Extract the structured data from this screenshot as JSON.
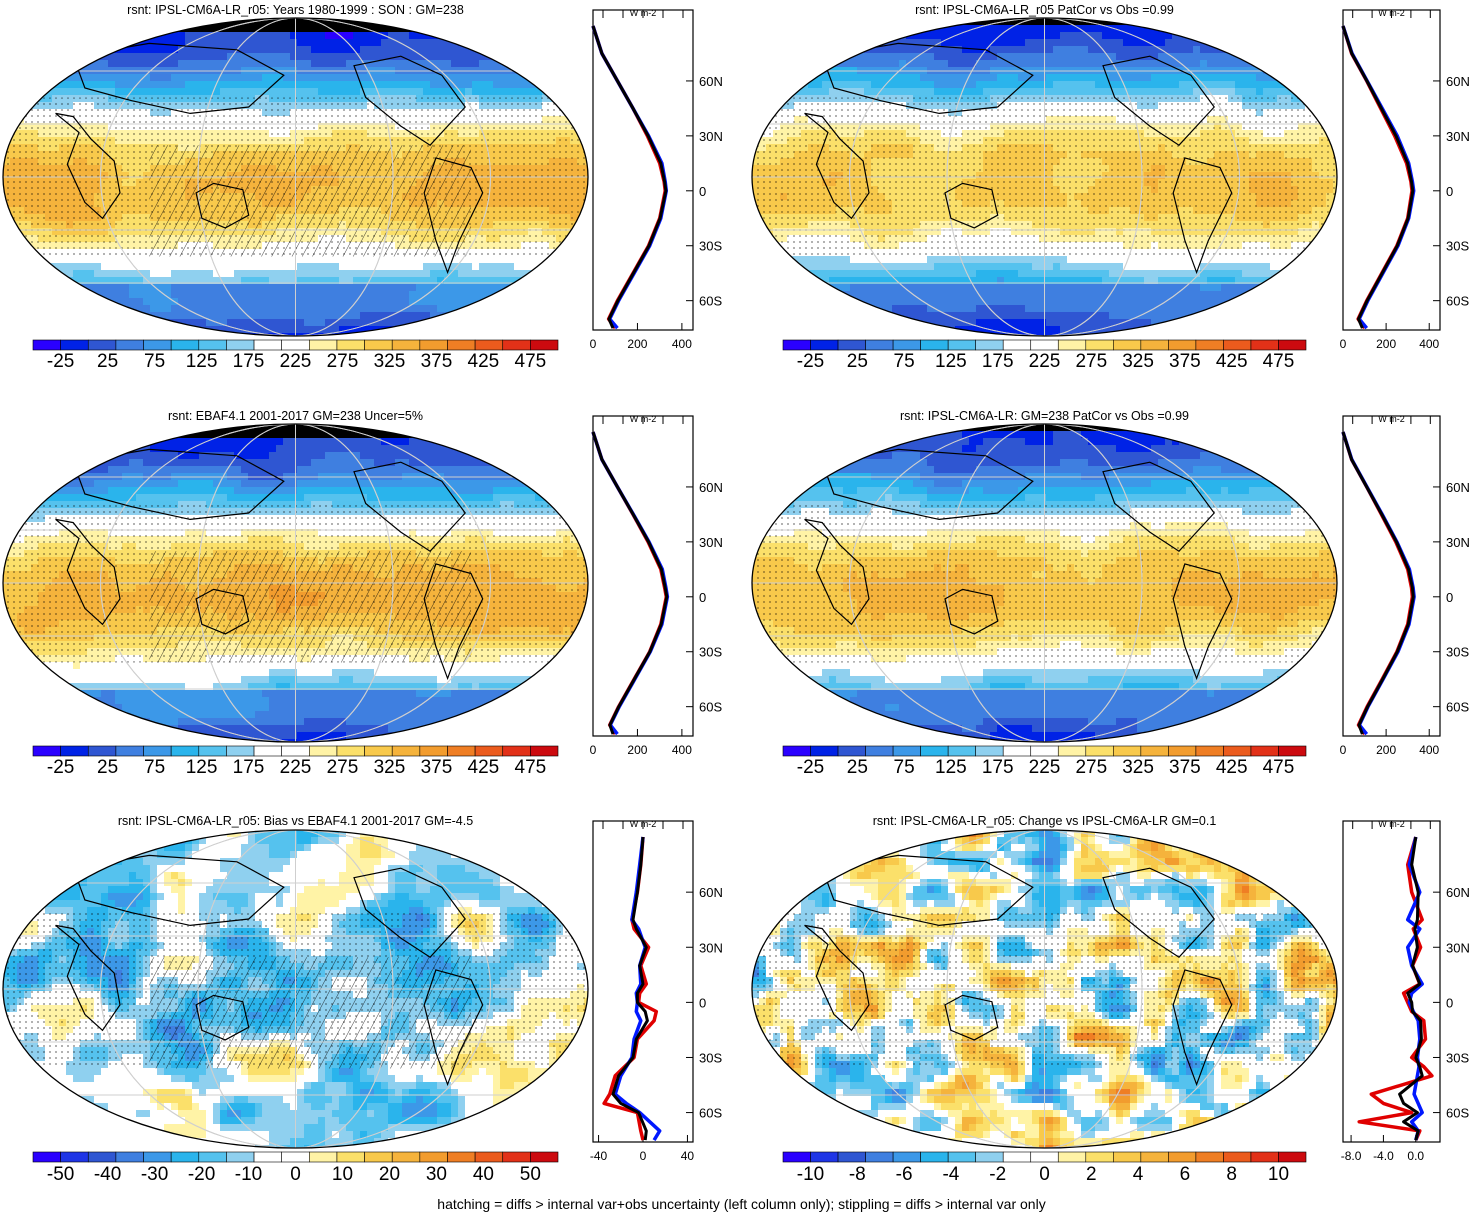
{
  "colors": {
    "abs_scale": [
      "#2a00ff",
      "#0022e6",
      "#2f56d2",
      "#3f7fe0",
      "#3c98e8",
      "#2ab4ec",
      "#55c2ee",
      "#8fd0ef",
      "#ffffff",
      "#ffffff",
      "#fff3a6",
      "#fbe06a",
      "#f8c94b",
      "#f5b33c",
      "#f29c2e",
      "#ef7e24",
      "#eb5b1d",
      "#e23118",
      "#cc0a0f"
    ],
    "anom_scale": [
      "#2a00ff",
      "#1f35e6",
      "#2f56d2",
      "#3f7fe0",
      "#3c98e8",
      "#2ab4ec",
      "#55c2ee",
      "#8fd0ef",
      "#ffffff",
      "#ffffff",
      "#fff3a6",
      "#fbe06a",
      "#f8c94b",
      "#f5b33c",
      "#f29c2e",
      "#ef7e24",
      "#eb5b1d",
      "#e23118",
      "#cc0a0f"
    ],
    "line_model": "#e00000",
    "line_obs": "#0018ff",
    "line_mean": "#000000"
  },
  "footer_note": "hatching = diffs > internal var+obs uncertainty (left column only); stippling = diffs > internal var only",
  "chart_data": [
    {
      "type": "heatmap",
      "panel": "top-left",
      "title": "rsnt: IPSL-CM6A-LR_r05: Years 1980-1999 : SON : GM=238",
      "colorbar_labels": [
        "-25",
        "25",
        "75",
        "125",
        "175",
        "225",
        "275",
        "325",
        "375",
        "425",
        "475"
      ],
      "field": {
        "kind": "abs",
        "lat_max": 330,
        "cap_low": 20,
        "eq_shift": -6
      },
      "profile": {
        "unit": "W m-2",
        "x_ticks": [
          "0",
          "200",
          "400"
        ],
        "xlim": [
          0,
          450
        ],
        "lat_ticks": [
          "60N",
          "30N",
          "0",
          "30S",
          "60S"
        ],
        "lat": [
          90,
          75,
          60,
          45,
          30,
          15,
          5,
          0,
          -15,
          -30,
          -45,
          -60,
          -70,
          -75
        ],
        "model": [
          0,
          40,
          110,
          180,
          245,
          300,
          320,
          325,
          300,
          250,
          180,
          110,
          70,
          100
        ],
        "obs": [
          0,
          40,
          110,
          180,
          250,
          310,
          325,
          330,
          305,
          255,
          185,
          115,
          75,
          110
        ],
        "mean": [
          0,
          40,
          110,
          180,
          248,
          305,
          322,
          328,
          302,
          252,
          182,
          112,
          72,
          90
        ]
      }
    },
    {
      "type": "heatmap",
      "panel": "top-right",
      "title": "rsnt: IPSL-CM6A-LR_r05 PatCor vs Obs =0.99",
      "colorbar_labels": [
        "-25",
        "25",
        "75",
        "125",
        "175",
        "225",
        "275",
        "325",
        "375",
        "425",
        "475"
      ],
      "field": {
        "kind": "abs",
        "lat_max": 320,
        "cap_low": 25,
        "eq_shift": -4
      },
      "profile": {
        "unit": "W m-2",
        "x_ticks": [
          "0",
          "200",
          "400"
        ],
        "xlim": [
          0,
          450
        ],
        "lat_ticks": [
          "60N",
          "30N",
          "0",
          "30S",
          "60S"
        ],
        "lat": [
          90,
          75,
          60,
          45,
          30,
          15,
          5,
          0,
          -15,
          -30,
          -45,
          -60,
          -70,
          -75
        ],
        "model": [
          0,
          40,
          110,
          175,
          240,
          295,
          315,
          320,
          300,
          250,
          180,
          110,
          70,
          100
        ],
        "obs": [
          0,
          42,
          112,
          182,
          252,
          305,
          322,
          328,
          305,
          255,
          185,
          115,
          75,
          110
        ],
        "mean": [
          0,
          41,
          111,
          178,
          246,
          300,
          318,
          324,
          302,
          252,
          182,
          112,
          72,
          90
        ]
      }
    },
    {
      "type": "heatmap",
      "panel": "middle-left",
      "title": "rsnt: EBAF4.1 2001-2017 GM=238 Uncer=5%",
      "colorbar_labels": [
        "-25",
        "25",
        "75",
        "125",
        "175",
        "225",
        "275",
        "325",
        "375",
        "425",
        "475"
      ],
      "field": {
        "kind": "abs",
        "lat_max": 335,
        "cap_low": 20,
        "eq_shift": -8
      },
      "profile": {
        "unit": "W m-2",
        "x_ticks": [
          "0",
          "200",
          "400"
        ],
        "xlim": [
          0,
          450
        ],
        "lat_ticks": [
          "60N",
          "30N",
          "0",
          "30S",
          "60S"
        ],
        "lat": [
          90,
          75,
          60,
          45,
          30,
          15,
          5,
          0,
          -15,
          -30,
          -45,
          -60,
          -70,
          -75
        ],
        "model": [
          0,
          40,
          110,
          180,
          248,
          305,
          322,
          330,
          305,
          255,
          185,
          115,
          75,
          100
        ],
        "obs": [
          0,
          40,
          110,
          182,
          252,
          312,
          328,
          335,
          310,
          258,
          188,
          118,
          78,
          110
        ],
        "mean": [
          0,
          40,
          110,
          181,
          250,
          308,
          325,
          332,
          307,
          256,
          186,
          116,
          76,
          90
        ]
      }
    },
    {
      "type": "heatmap",
      "panel": "middle-right",
      "title": "rsnt: IPSL-CM6A-LR: GM=238 PatCor vs Obs =0.99",
      "colorbar_labels": [
        "-25",
        "25",
        "75",
        "125",
        "175",
        "225",
        "275",
        "325",
        "375",
        "425",
        "475"
      ],
      "field": {
        "kind": "abs",
        "lat_max": 325,
        "cap_low": 25,
        "eq_shift": -5
      },
      "profile": {
        "unit": "W m-2",
        "x_ticks": [
          "0",
          "200",
          "400"
        ],
        "xlim": [
          0,
          450
        ],
        "lat_ticks": [
          "60N",
          "30N",
          "0",
          "30S",
          "60S"
        ],
        "lat": [
          90,
          75,
          60,
          45,
          30,
          15,
          5,
          0,
          -15,
          -30,
          -45,
          -60,
          -70,
          -75
        ],
        "model": [
          0,
          40,
          110,
          178,
          245,
          300,
          318,
          322,
          300,
          250,
          182,
          112,
          72,
          100
        ],
        "obs": [
          0,
          41,
          111,
          182,
          250,
          308,
          325,
          330,
          306,
          255,
          186,
          116,
          76,
          110
        ],
        "mean": [
          0,
          40,
          110,
          180,
          248,
          304,
          322,
          326,
          303,
          252,
          184,
          114,
          74,
          90
        ]
      }
    },
    {
      "type": "heatmap",
      "panel": "bottom-left",
      "title": "rsnt: IPSL-CM6A-LR_r05: Bias vs EBAF4.1 2001-2017  GM=-4.5",
      "colorbar_labels": [
        "-50",
        "-40",
        "-30",
        "-20",
        "-10",
        "0",
        "10",
        "20",
        "30",
        "40",
        "50"
      ],
      "field": {
        "kind": "bias"
      },
      "profile": {
        "unit": "W m-2",
        "x_ticks": [
          "-40",
          "0",
          "40"
        ],
        "xlim": [
          -45,
          45
        ],
        "lat_ticks": [
          "60N",
          "30N",
          "0",
          "30S",
          "60S"
        ],
        "lat": [
          90,
          75,
          60,
          45,
          40,
          30,
          20,
          10,
          5,
          0,
          -5,
          -10,
          -20,
          -30,
          -40,
          -50,
          -55,
          -60,
          -70,
          -75
        ],
        "model": [
          0,
          -2,
          -5,
          -10,
          -8,
          5,
          -2,
          3,
          -3,
          -4,
          12,
          10,
          -5,
          -8,
          -25,
          -30,
          -35,
          -5,
          -2,
          0
        ],
        "obs": [
          0,
          -3,
          -6,
          -10,
          -4,
          2,
          -3,
          -2,
          -6,
          -5,
          -6,
          -2,
          -8,
          -10,
          -20,
          -25,
          -15,
          -3,
          15,
          10
        ],
        "mean": [
          0,
          -2,
          -5,
          -9,
          -6,
          3,
          -3,
          0,
          -5,
          -5,
          2,
          4,
          -6,
          -9,
          -22,
          -27,
          -20,
          -4,
          3,
          2
        ]
      }
    },
    {
      "type": "heatmap",
      "panel": "bottom-right",
      "title": "rsnt: IPSL-CM6A-LR_r05: Change vs IPSL-CM6A-LR GM=0.1",
      "colorbar_labels": [
        "-10",
        "-8",
        "-6",
        "-4",
        "-2",
        "0",
        "2",
        "4",
        "6",
        "8",
        "10"
      ],
      "field": {
        "kind": "change"
      },
      "profile": {
        "unit": "W m-2",
        "x_ticks": [
          "-8.0",
          "-4.0",
          "0.0"
        ],
        "xlim": [
          -9,
          3
        ],
        "lat_ticks": [
          "60N",
          "30N",
          "0",
          "30S",
          "60S"
        ],
        "lat": [
          90,
          75,
          60,
          45,
          40,
          30,
          20,
          10,
          5,
          0,
          -5,
          -10,
          -20,
          -30,
          -35,
          -40,
          -50,
          -55,
          -60,
          -65,
          -70,
          -75
        ],
        "model": [
          0,
          -1,
          -0.5,
          0.8,
          -0.3,
          0.6,
          -0.4,
          0.5,
          -1.5,
          -1.0,
          -0.5,
          1.0,
          1.2,
          -0.5,
          1.0,
          2.0,
          -5.5,
          -4.0,
          -0.5,
          -7.0,
          0.5,
          0.0
        ],
        "obs": [
          0,
          -0.8,
          0.5,
          -1.0,
          0.5,
          -1.0,
          -0.5,
          0.8,
          -0.5,
          -0.8,
          -0.3,
          0.3,
          0.5,
          0.2,
          0.4,
          0.2,
          -0.2,
          0.3,
          0.8,
          -0.5,
          0.3,
          0.0
        ],
        "mean": [
          0,
          -0.5,
          0.3,
          0.2,
          -0.1,
          0.2,
          -0.4,
          0.5,
          -1.0,
          -0.5,
          -0.4,
          0.6,
          0.7,
          0.0,
          0.5,
          0.8,
          -2.0,
          -1.5,
          0.2,
          -1.5,
          0.3,
          0.0
        ]
      }
    }
  ]
}
